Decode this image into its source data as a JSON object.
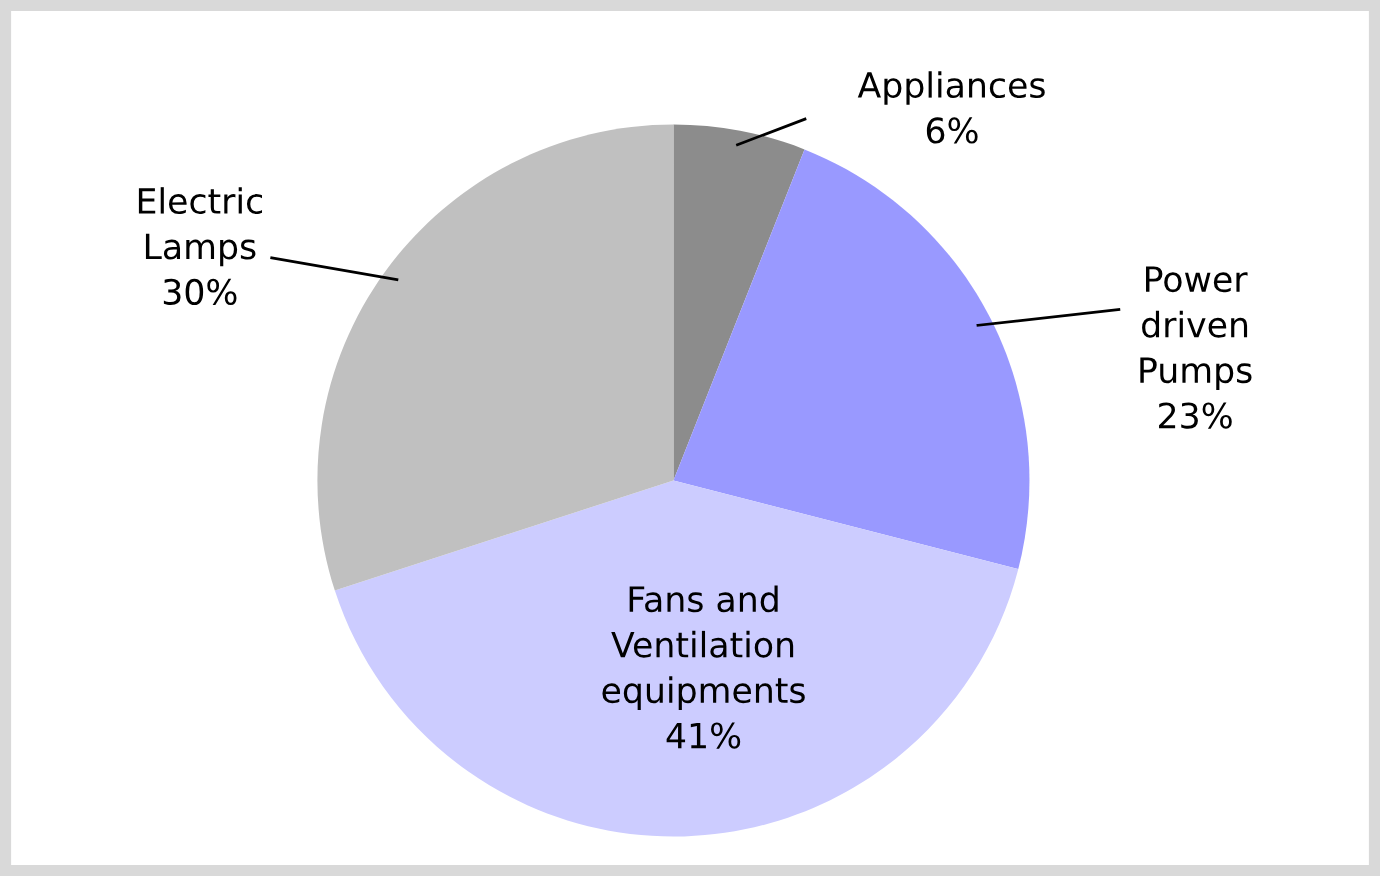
{
  "chart_data": {
    "type": "pie",
    "categories": [
      "Appliances",
      "Power\ndriven\nPumps",
      "Fans and\nVentilation\nequipments",
      "Electric\nLamps"
    ],
    "values": [
      6,
      23,
      41,
      30
    ],
    "value_labels": [
      "6%",
      "23%",
      "41%",
      "30%"
    ],
    "colors": [
      "#8c8c8c",
      "#9999ff",
      "#ccccff",
      "#c0c0c0"
    ]
  }
}
